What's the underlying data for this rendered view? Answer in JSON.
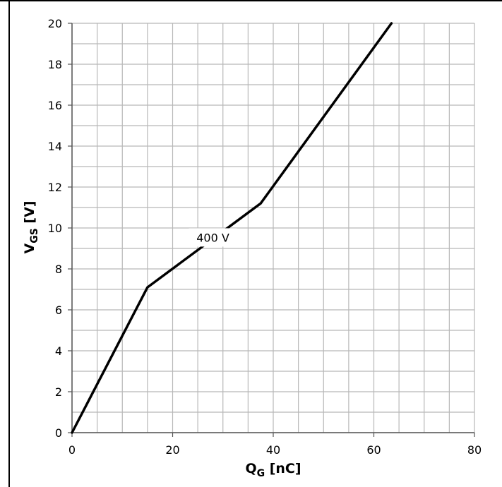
{
  "chart_data": {
    "type": "line",
    "xlabel": "Q",
    "xlabel_sub": "G",
    "xlabel_unit": " [nC]",
    "ylabel": "V",
    "ylabel_sub": "GS",
    "ylabel_unit": " [V]",
    "xlim": [
      0,
      80
    ],
    "ylim": [
      0,
      20
    ],
    "x_ticks": [
      0,
      20,
      40,
      60,
      80
    ],
    "y_ticks": [
      0,
      2,
      4,
      6,
      8,
      10,
      12,
      14,
      16,
      18,
      20
    ],
    "minor_grid_x_step": 5,
    "minor_grid_y_step": 1,
    "grid": true,
    "series": [
      {
        "color": "#000000",
        "x": [
          0,
          15,
          37.5,
          63.5
        ],
        "y": [
          0,
          7.1,
          11.2,
          20
        ]
      }
    ],
    "annotations": [
      {
        "text": "400 V",
        "x": 28,
        "y": 9.4
      }
    ]
  }
}
